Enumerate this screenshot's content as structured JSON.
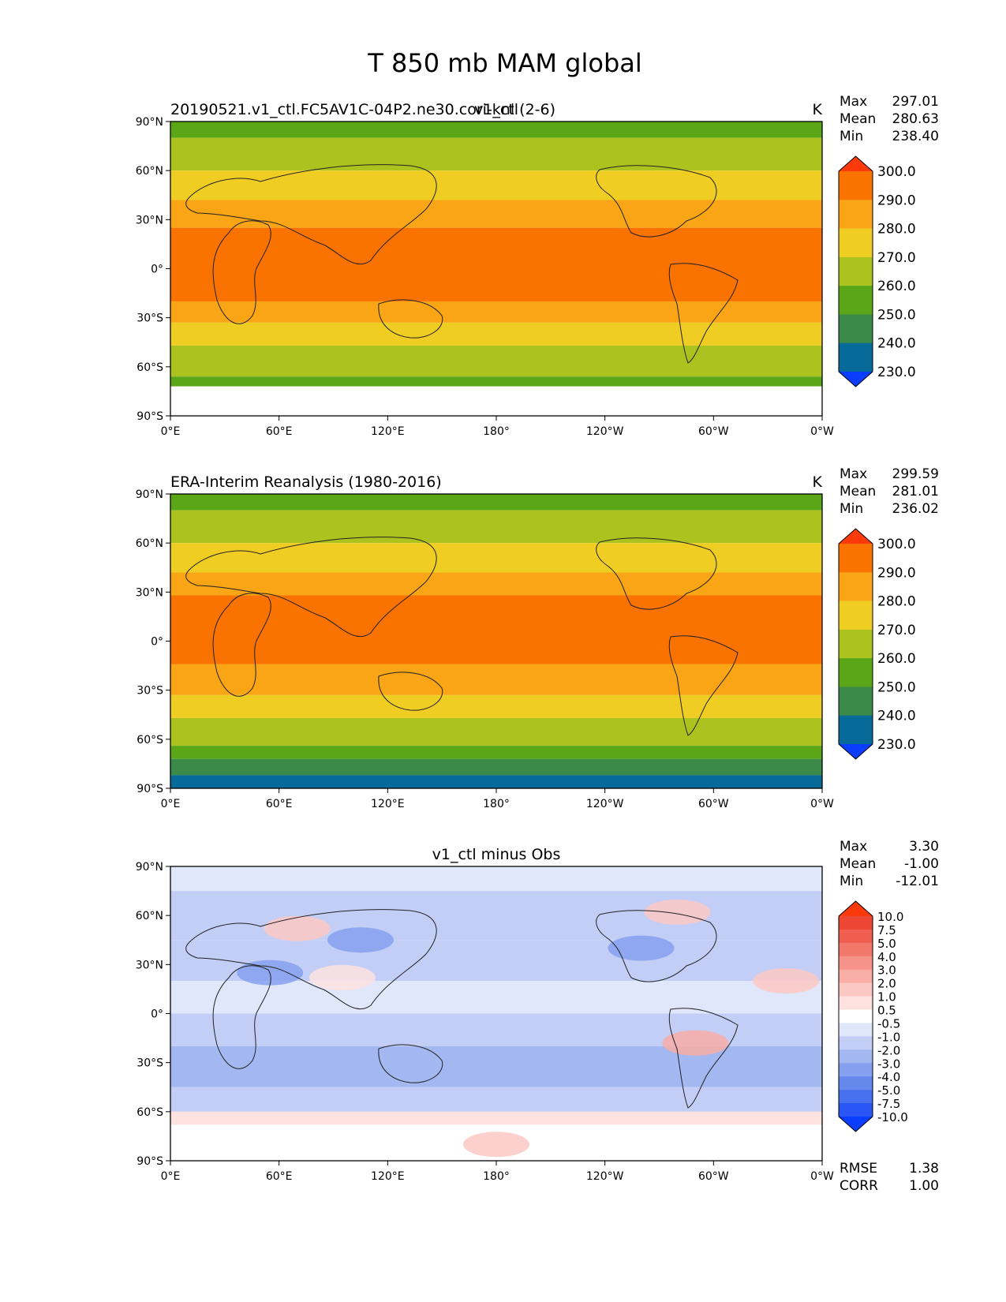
{
  "figure_title": "T 850 mb MAM global",
  "axes": {
    "lon_ticks": [
      "0°E",
      "60°E",
      "120°E",
      "180°",
      "120°W",
      "60°W",
      "0°W"
    ],
    "lat_ticks": [
      "90°N",
      "60°N",
      "30°N",
      "0°",
      "30°S",
      "60°S",
      "90°S"
    ]
  },
  "panels": [
    {
      "id": "model",
      "left_label": "20190521.v1_ctl.FC5AV1C-04P2.ne30.cori-knl (2-6)",
      "center_title": "v1_ctl",
      "units": "K",
      "stats": [
        {
          "label": "Max",
          "value": "297.01"
        },
        {
          "label": "Mean",
          "value": "280.63"
        },
        {
          "label": "Min",
          "value": "238.40"
        }
      ]
    },
    {
      "id": "obs",
      "left_label": "ERA-Interim Reanalysis (1980-2016)",
      "center_title": "",
      "units": "K",
      "stats": [
        {
          "label": "Max",
          "value": "299.59"
        },
        {
          "label": "Mean",
          "value": "281.01"
        },
        {
          "label": "Min",
          "value": "236.02"
        }
      ]
    },
    {
      "id": "diff",
      "left_label": "",
      "center_title": "v1_ctl minus Obs",
      "units": "",
      "stats": [
        {
          "label": "Max",
          "value": "3.30"
        },
        {
          "label": "Mean",
          "value": "-1.00"
        },
        {
          "label": "Min",
          "value": "-12.01"
        }
      ],
      "metrics": [
        {
          "label": "RMSE",
          "value": "1.38"
        },
        {
          "label": "CORR",
          "value": "1.00"
        }
      ]
    }
  ],
  "chart_data": [
    {
      "type": "heatmap",
      "title": "v1_ctl",
      "units": "K",
      "xlim": [
        0,
        360
      ],
      "ylim": [
        -90,
        90
      ],
      "colorbar": {
        "levels": [
          "230.0",
          "240.0",
          "250.0",
          "260.0",
          "270.0",
          "280.0",
          "290.0",
          "300.0"
        ],
        "colors": [
          "#0b3dff",
          "#086a99",
          "#3b8a4a",
          "#5aa617",
          "#abc21f",
          "#f0cd23",
          "#f9a516",
          "#fa7200",
          "#fc3a0c"
        ]
      },
      "lat_bands": [
        {
          "lat_top": 90,
          "lat_bottom": 80,
          "class": 3
        },
        {
          "lat_top": 80,
          "lat_bottom": 60,
          "class": 4
        },
        {
          "lat_top": 60,
          "lat_bottom": 42,
          "class": 5
        },
        {
          "lat_top": 42,
          "lat_bottom": 25,
          "class": 6
        },
        {
          "lat_top": 25,
          "lat_bottom": -20,
          "class": 7
        },
        {
          "lat_top": -20,
          "lat_bottom": -33,
          "class": 6
        },
        {
          "lat_top": -33,
          "lat_bottom": -47,
          "class": 5
        },
        {
          "lat_top": -47,
          "lat_bottom": -66,
          "class": 4
        },
        {
          "lat_top": -66,
          "lat_bottom": -72,
          "class": 3
        },
        {
          "lat_top": -72,
          "lat_bottom": -90,
          "class": -1
        }
      ]
    },
    {
      "type": "heatmap",
      "title": "ERA-Interim Reanalysis (1980-2016)",
      "units": "K",
      "xlim": [
        0,
        360
      ],
      "ylim": [
        -90,
        90
      ],
      "colorbar": {
        "levels": [
          "230.0",
          "240.0",
          "250.0",
          "260.0",
          "270.0",
          "280.0",
          "290.0",
          "300.0"
        ],
        "colors": [
          "#0b3dff",
          "#086a99",
          "#3b8a4a",
          "#5aa617",
          "#abc21f",
          "#f0cd23",
          "#f9a516",
          "#fa7200",
          "#fc3a0c"
        ]
      },
      "lat_bands": [
        {
          "lat_top": 90,
          "lat_bottom": 80,
          "class": 3
        },
        {
          "lat_top": 80,
          "lat_bottom": 60,
          "class": 4
        },
        {
          "lat_top": 60,
          "lat_bottom": 42,
          "class": 5
        },
        {
          "lat_top": 42,
          "lat_bottom": 28,
          "class": 6
        },
        {
          "lat_top": 28,
          "lat_bottom": -14,
          "class": 7
        },
        {
          "lat_top": -14,
          "lat_bottom": -33,
          "class": 6
        },
        {
          "lat_top": -33,
          "lat_bottom": -47,
          "class": 5
        },
        {
          "lat_top": -47,
          "lat_bottom": -64,
          "class": 4
        },
        {
          "lat_top": -64,
          "lat_bottom": -72,
          "class": 3
        },
        {
          "lat_top": -72,
          "lat_bottom": -82,
          "class": 2
        },
        {
          "lat_top": -82,
          "lat_bottom": -90,
          "class": 1
        }
      ]
    },
    {
      "type": "heatmap",
      "title": "v1_ctl minus Obs",
      "units": "K",
      "xlim": [
        0,
        360
      ],
      "ylim": [
        -90,
        90
      ],
      "colorbar": {
        "levels": [
          "-10.0",
          "-7.5",
          "-5.0",
          "-4.0",
          "-3.0",
          "-2.0",
          "-1.0",
          "-0.5",
          "0.5",
          "1.0",
          "2.0",
          "3.0",
          "4.0",
          "5.0",
          "7.5",
          "10.0"
        ],
        "colors": [
          "#0b3dff",
          "#2a55f5",
          "#4670ee",
          "#6588ec",
          "#85a0ee",
          "#a3b7f1",
          "#c2cef6",
          "#e0e7fb",
          "#ffffff",
          "#fde2e0",
          "#fbc8c3",
          "#f8ada6",
          "#f5938a",
          "#f2786c",
          "#f05e4f",
          "#ee4634",
          "#fc3a0c"
        ]
      },
      "lat_bands": [
        {
          "lat_top": 90,
          "lat_bottom": 75,
          "class": 7
        },
        {
          "lat_top": 75,
          "lat_bottom": 45,
          "class": 6
        },
        {
          "lat_top": 45,
          "lat_bottom": 20,
          "class": 6
        },
        {
          "lat_top": 20,
          "lat_bottom": 0,
          "class": 7
        },
        {
          "lat_top": 0,
          "lat_bottom": -20,
          "class": 6
        },
        {
          "lat_top": -20,
          "lat_bottom": -45,
          "class": 5
        },
        {
          "lat_top": -45,
          "lat_bottom": -60,
          "class": 6
        },
        {
          "lat_top": -60,
          "lat_bottom": -68,
          "class": 9
        },
        {
          "lat_top": -68,
          "lat_bottom": -90,
          "class": 8
        }
      ],
      "anomalies": [
        {
          "lon": 180,
          "lat": -80,
          "class": 10
        },
        {
          "lon": 70,
          "lat": 52,
          "class": 10
        },
        {
          "lon": 280,
          "lat": 62,
          "class": 10
        },
        {
          "lon": 340,
          "lat": 20,
          "class": 10
        },
        {
          "lon": 290,
          "lat": -18,
          "class": 11
        },
        {
          "lon": 95,
          "lat": 22,
          "class": 9
        },
        {
          "lon": 55,
          "lat": 25,
          "class": 4
        },
        {
          "lon": 105,
          "lat": 45,
          "class": 4
        },
        {
          "lon": 260,
          "lat": 40,
          "class": 4
        }
      ]
    }
  ]
}
